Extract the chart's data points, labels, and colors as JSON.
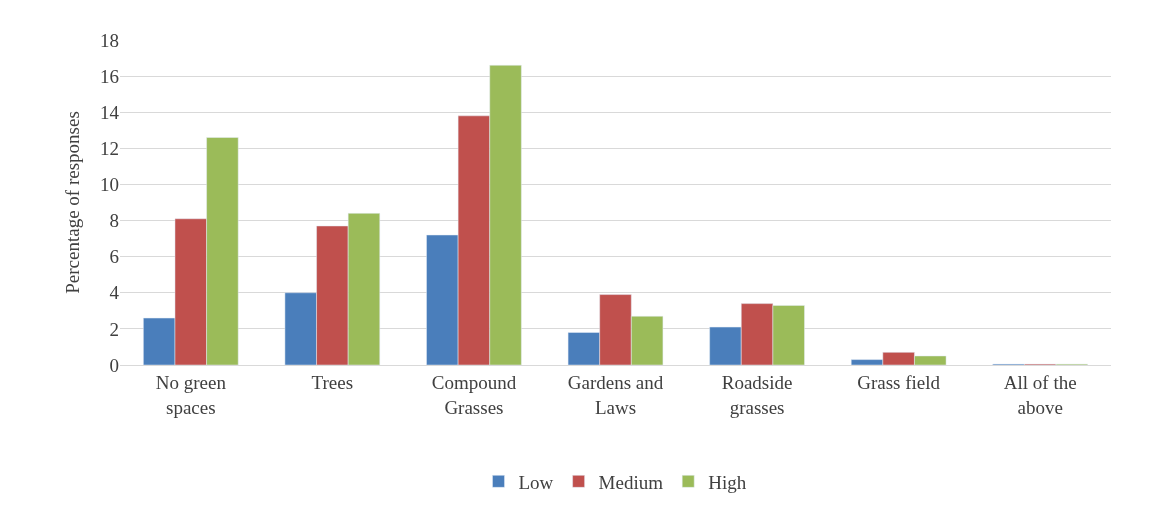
{
  "chart_data": {
    "type": "bar",
    "ylabel": "Percentage of responses",
    "categories": [
      "No green\nspaces",
      "Trees",
      "Compound\nGrasses",
      "Gardens and\nLaws",
      "Roadside\ngrasses",
      "Grass field",
      "All of the\nabove"
    ],
    "series": [
      {
        "name": "Low",
        "color": "#4a7ebb",
        "values": [
          2.6,
          4.0,
          7.2,
          1.8,
          2.1,
          0.3,
          0.05
        ]
      },
      {
        "name": "Medium",
        "color": "#c0504d",
        "values": [
          8.1,
          7.7,
          13.8,
          3.9,
          3.4,
          0.7,
          0.05
        ]
      },
      {
        "name": "High",
        "color": "#9bbb59",
        "values": [
          12.6,
          8.4,
          16.6,
          2.7,
          3.3,
          0.5,
          0.05
        ]
      }
    ],
    "ylim": [
      0,
      18
    ],
    "yticks": [
      0,
      2,
      4,
      6,
      8,
      10,
      12,
      14,
      16,
      18
    ],
    "grid": "y",
    "legend": "bottom"
  }
}
